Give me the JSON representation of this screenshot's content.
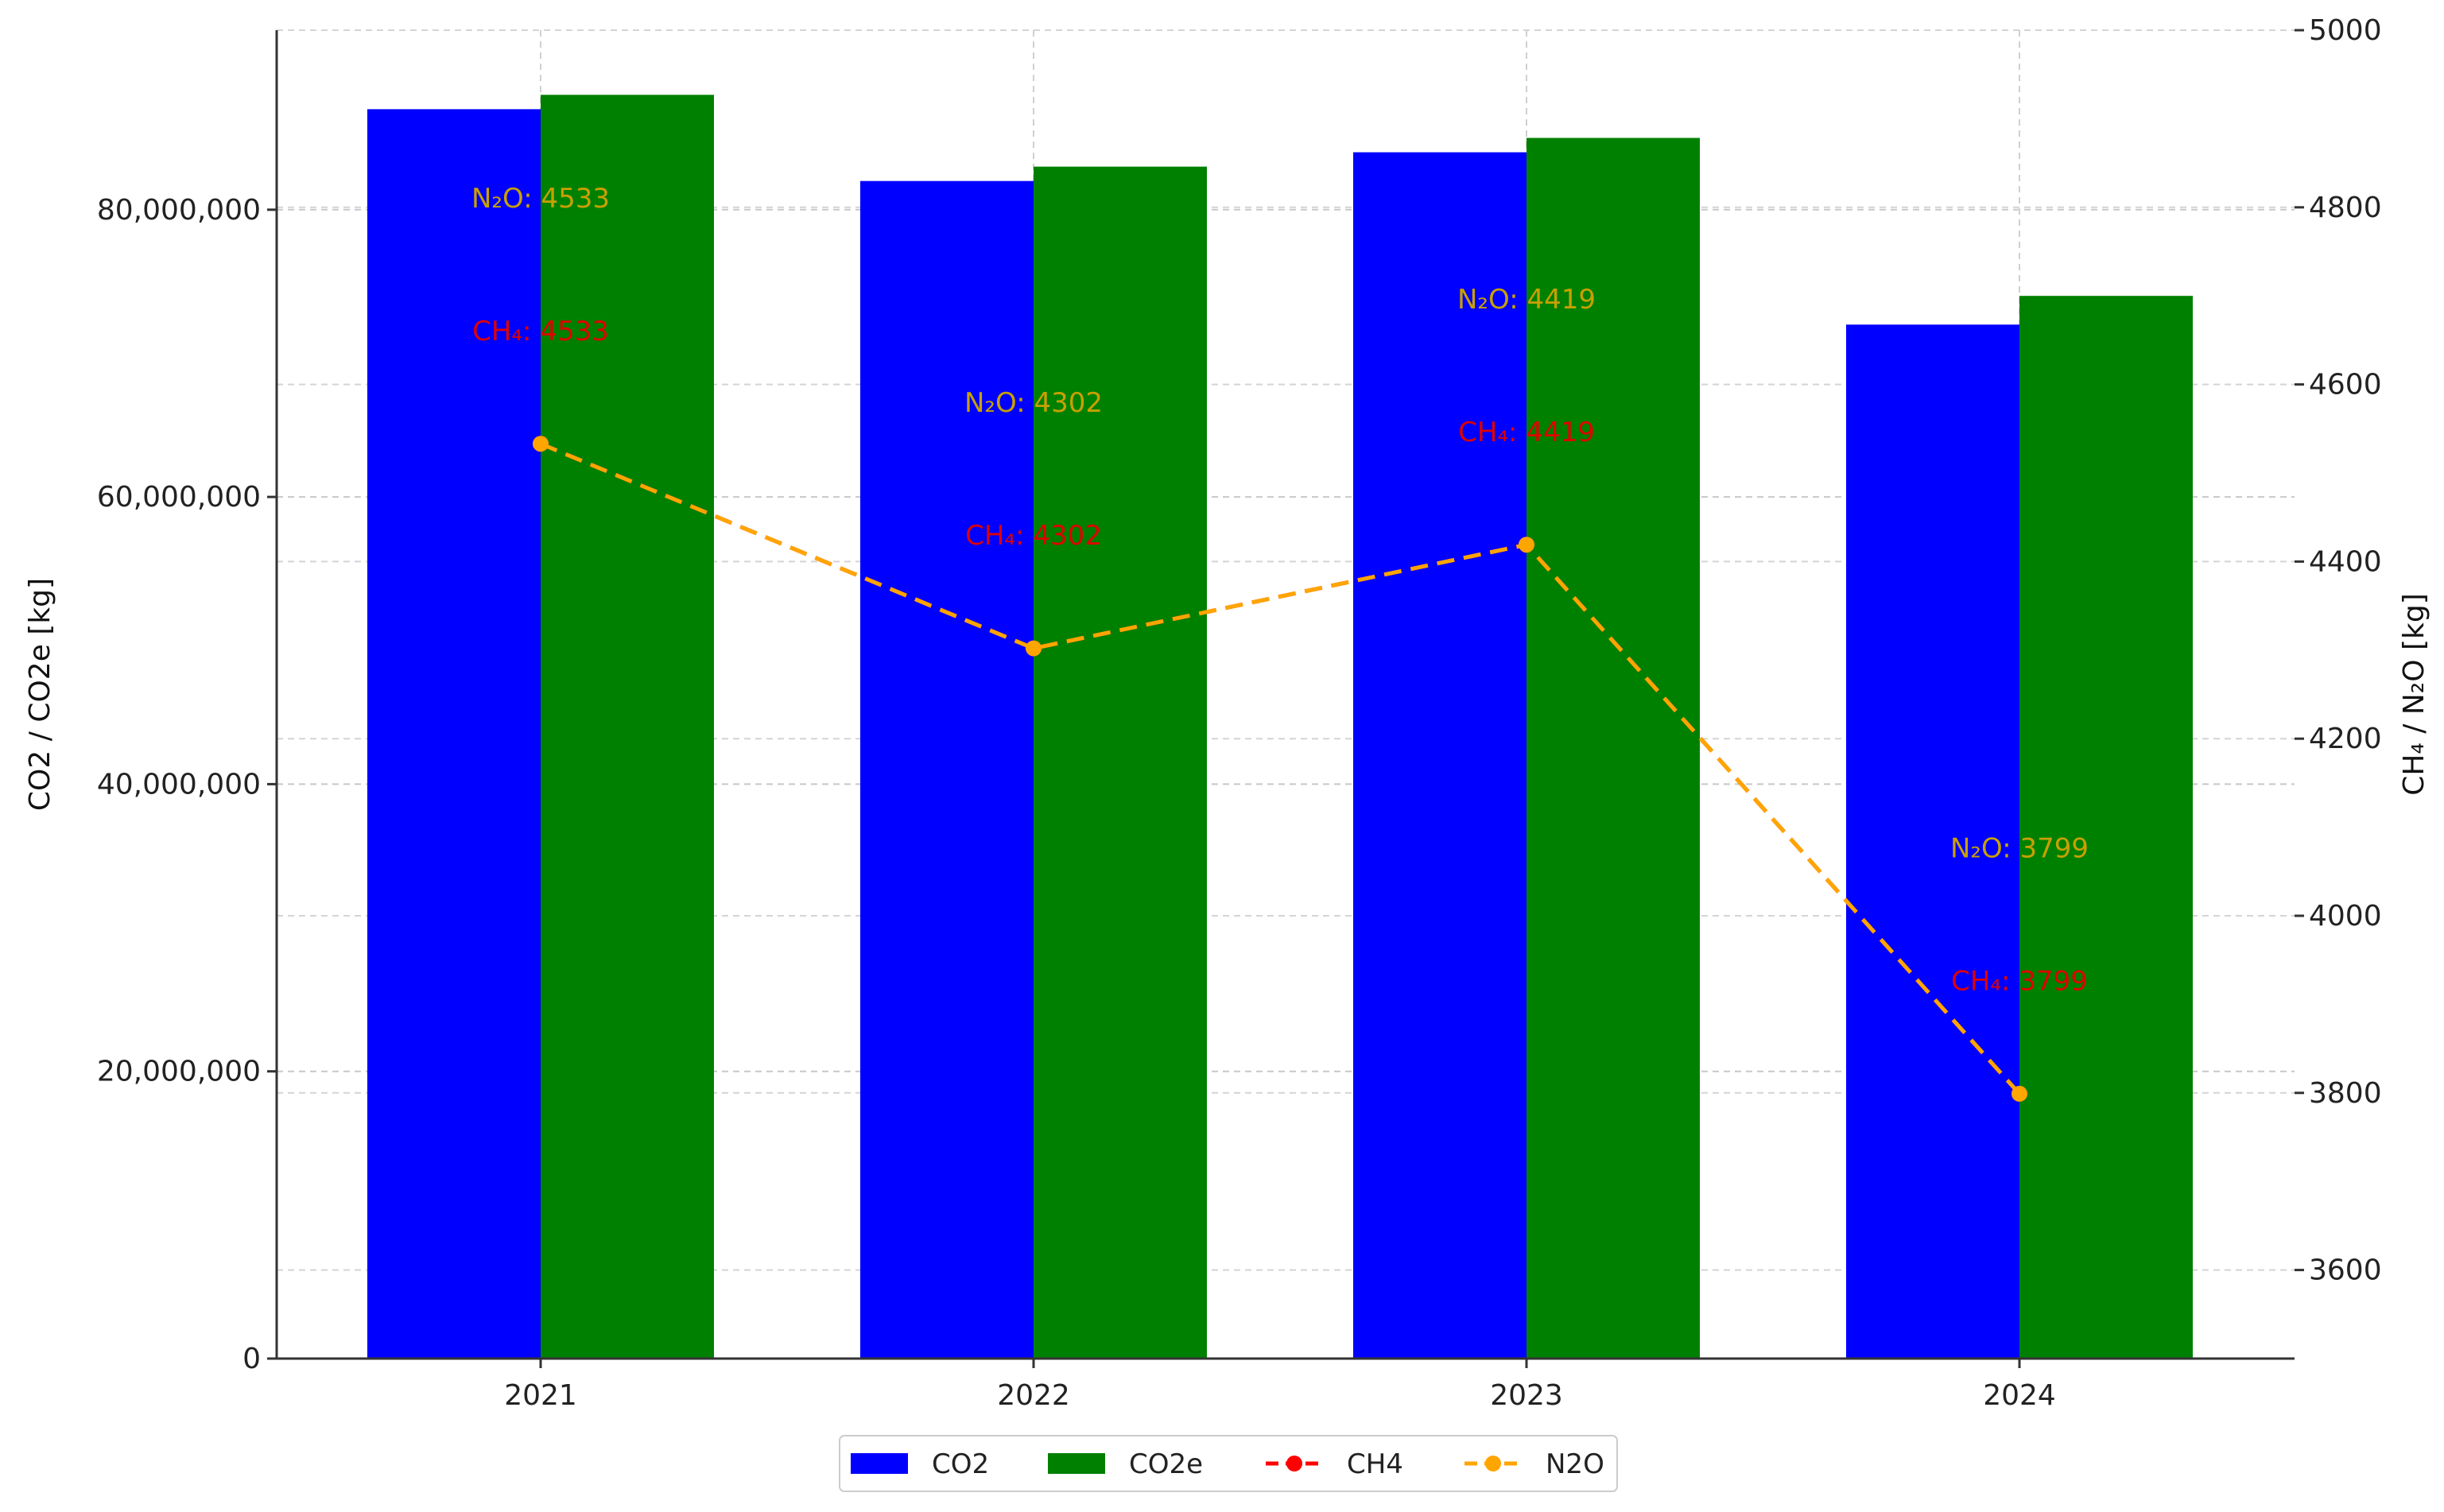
{
  "chart_data": {
    "type": "bar",
    "categories": [
      "2021",
      "2022",
      "2023",
      "2024"
    ],
    "left_axis": {
      "label": "CO2 / CO2e [kg]",
      "ylim": [
        0,
        92500000
      ],
      "ticks": [
        0,
        20000000,
        40000000,
        60000000,
        80000000
      ],
      "tick_labels": [
        "0",
        "20,000,000",
        "40,000,000",
        "60,000,000",
        "80,000,000"
      ]
    },
    "right_axis": {
      "label": "CH₄ / N₂O [kg]",
      "ylim": [
        3500,
        5000
      ],
      "ticks": [
        3600,
        3800,
        4000,
        4200,
        4400,
        4600,
        4800,
        5000
      ],
      "tick_labels": [
        "3600",
        "3800",
        "4000",
        "4200",
        "4400",
        "4600",
        "4800",
        "5000"
      ]
    },
    "bar_series": [
      {
        "name": "CO2",
        "color": "#0000ff",
        "axis": "left",
        "values": [
          87000000,
          82000000,
          84000000,
          72000000
        ]
      },
      {
        "name": "CO2e",
        "color": "#008000",
        "axis": "left",
        "values": [
          88000000,
          83000000,
          85000000,
          74000000
        ]
      }
    ],
    "line_series": [
      {
        "name": "CH4",
        "color": "#ff0000",
        "axis": "right",
        "values": [
          4533,
          4302,
          4419,
          3799
        ]
      },
      {
        "name": "N2O",
        "color": "#ffa500",
        "axis": "right",
        "values": [
          4533,
          4302,
          4419,
          3799
        ]
      }
    ],
    "annotations": [
      {
        "label": "N₂O:  4533",
        "color": "#c8a000",
        "category": "2021",
        "value": 4800
      },
      {
        "label": "CH₄:  4533",
        "color": "#e00000",
        "category": "2021",
        "value": 4650
      },
      {
        "label": "N₂O:  4302",
        "color": "#c8a000",
        "category": "2022",
        "value": 4569
      },
      {
        "label": "CH₄:  4302",
        "color": "#e00000",
        "category": "2022",
        "value": 4419
      },
      {
        "label": "N₂O:  4419",
        "color": "#c8a000",
        "category": "2023",
        "value": 4686
      },
      {
        "label": "CH₄:  4419",
        "color": "#e00000",
        "category": "2023",
        "value": 4536
      },
      {
        "label": "N₂O:  3799",
        "color": "#c8a000",
        "category": "2024",
        "value": 4066
      },
      {
        "label": "CH₄:  3799",
        "color": "#e00000",
        "category": "2024",
        "value": 3916
      }
    ],
    "legend": {
      "placement": "bottom-center",
      "items": [
        {
          "name": "CO2",
          "kind": "bar",
          "color": "#0000ff"
        },
        {
          "name": "CO2e",
          "kind": "bar",
          "color": "#008000"
        },
        {
          "name": "CH4",
          "kind": "line",
          "color": "#ff0000"
        },
        {
          "name": "N2O",
          "kind": "line",
          "color": "#ffa500"
        }
      ]
    },
    "grid": true
  }
}
